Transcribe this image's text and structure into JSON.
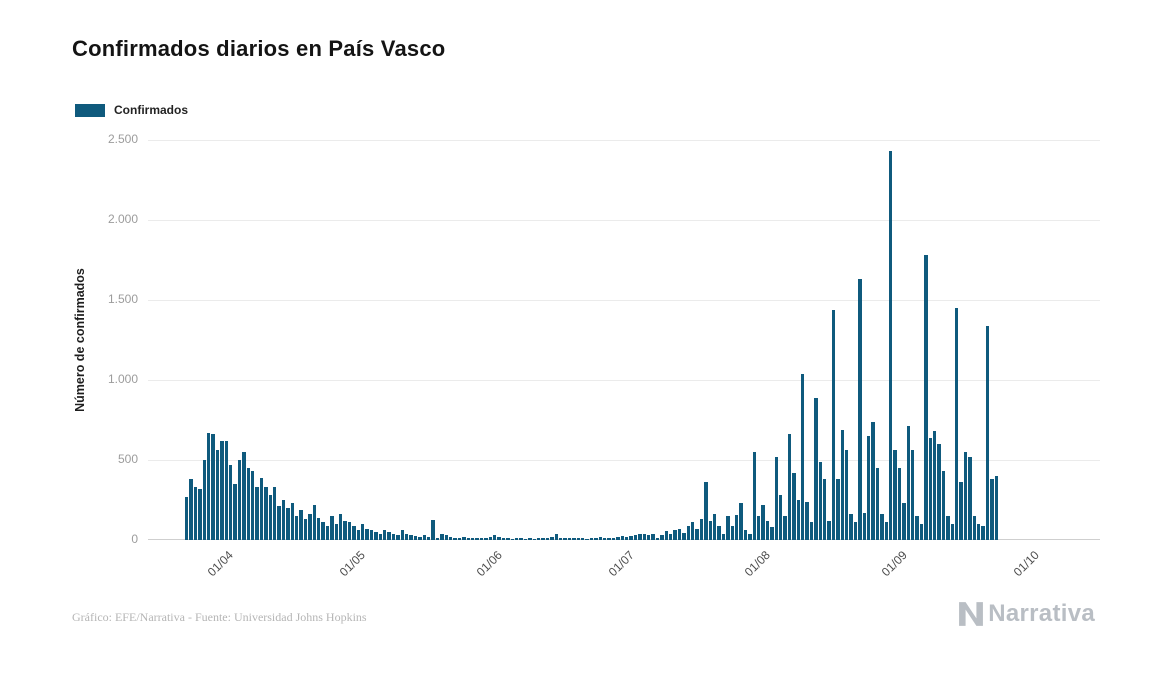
{
  "title": "Confirmados diarios en País Vasco",
  "legend": {
    "label": "Confirmados",
    "color": "#0f5a7d"
  },
  "footer": {
    "credit": "Gráfico: EFE/Narrativa - Fuente: Universidad Johns Hopkins"
  },
  "branding": {
    "name": "Narrativa"
  },
  "chart_data": {
    "type": "bar",
    "title": "Confirmados diarios en País Vasco",
    "series_name": "Confirmados",
    "xlabel": "",
    "ylabel": "Número de confirmados",
    "bar_color": "#0f5a7d",
    "background": "#ffffff",
    "grid": "horizontal",
    "legend_position": "top-left",
    "ylim": [
      0,
      2500
    ],
    "x_unit": "day",
    "start_date": "23/03",
    "end_date": "23/09",
    "y_ticks": [
      {
        "label": "0",
        "value": 0
      },
      {
        "label": "500",
        "value": 500
      },
      {
        "label": "1.000",
        "value": 1000
      },
      {
        "label": "1.500",
        "value": 1500
      },
      {
        "label": "2.000",
        "value": 2000
      },
      {
        "label": "2.500",
        "value": 2500
      }
    ],
    "x_ticks": [
      {
        "label": "01/04",
        "day": 9
      },
      {
        "label": "01/05",
        "day": 39
      },
      {
        "label": "01/06",
        "day": 70
      },
      {
        "label": "01/07",
        "day": 100
      },
      {
        "label": "01/08",
        "day": 131
      },
      {
        "label": "01/09",
        "day": 162
      },
      {
        "label": "01/10",
        "day": 192
      }
    ],
    "values": [
      270,
      380,
      330,
      320,
      500,
      670,
      660,
      560,
      620,
      620,
      470,
      350,
      500,
      550,
      450,
      430,
      330,
      390,
      330,
      280,
      330,
      210,
      250,
      200,
      230,
      150,
      190,
      130,
      160,
      220,
      140,
      110,
      90,
      150,
      100,
      160,
      120,
      110,
      90,
      60,
      100,
      70,
      60,
      50,
      40,
      60,
      50,
      40,
      30,
      60,
      40,
      30,
      25,
      20,
      30,
      20,
      125,
      15,
      40,
      30,
      20,
      15,
      10,
      20,
      15,
      10,
      10,
      15,
      10,
      20,
      30,
      20,
      15,
      10,
      5,
      10,
      15,
      5,
      10,
      5,
      10,
      15,
      10,
      20,
      35,
      15,
      10,
      15,
      10,
      15,
      10,
      5,
      15,
      10,
      20,
      15,
      10,
      15,
      20,
      25,
      20,
      25,
      30,
      40,
      35,
      30,
      40,
      15,
      30,
      55,
      40,
      60,
      70,
      45,
      90,
      110,
      70,
      130,
      360,
      120,
      160,
      90,
      40,
      150,
      90,
      155,
      230,
      60,
      40,
      550,
      150,
      220,
      120,
      80,
      520,
      280,
      150,
      660,
      420,
      250,
      1040,
      240,
      110,
      890,
      490,
      380,
      120,
      1440,
      380,
      690,
      560,
      160,
      110,
      1630,
      170,
      650,
      740,
      450,
      160,
      110,
      2430,
      560,
      450,
      230,
      710,
      560,
      150,
      100,
      1780,
      640,
      680,
      600,
      430,
      150,
      100,
      1450,
      360,
      550,
      520,
      150,
      100,
      90,
      1340,
      380,
      400
    ]
  }
}
